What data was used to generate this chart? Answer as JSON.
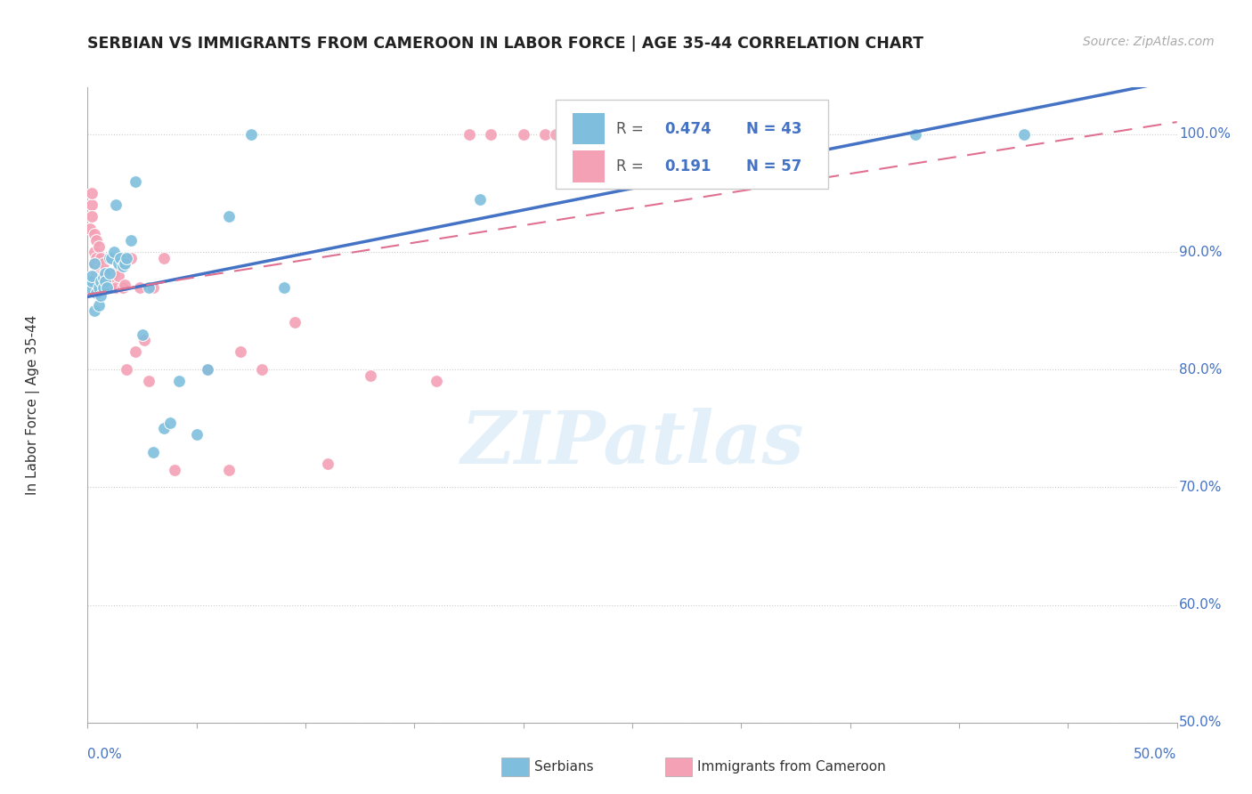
{
  "title": "SERBIAN VS IMMIGRANTS FROM CAMEROON IN LABOR FORCE | AGE 35-44 CORRELATION CHART",
  "source": "Source: ZipAtlas.com",
  "ylabel": "In Labor Force | Age 35-44",
  "xlim": [
    0.0,
    0.5
  ],
  "ylim": [
    0.5,
    1.04
  ],
  "ytick_values": [
    0.5,
    0.6,
    0.7,
    0.8,
    0.9,
    1.0
  ],
  "ytick_labels": [
    "50.0%",
    "60.0%",
    "70.0%",
    "80.0%",
    "90.0%",
    "100.0%"
  ],
  "xtick_label_left": "0.0%",
  "xtick_label_right": "50.0%",
  "legend_r1": "R = 0.474",
  "legend_n1": "N = 43",
  "legend_r2": "R =  0.191",
  "legend_n2": "N = 57",
  "serbian_color": "#7fbfdd",
  "cameroon_color": "#f4a0b5",
  "trend_serbian_color": "#4472c4",
  "trend_cameroon_color": "#e07090",
  "watermark_text": "ZIPatlas",
  "serbian_x": [
    0.001,
    0.002,
    0.002,
    0.003,
    0.003,
    0.004,
    0.005,
    0.005,
    0.006,
    0.006,
    0.007,
    0.007,
    0.008,
    0.008,
    0.009,
    0.01,
    0.01,
    0.011,
    0.012,
    0.013,
    0.014,
    0.015,
    0.016,
    0.017,
    0.018,
    0.02,
    0.022,
    0.025,
    0.028,
    0.03,
    0.035,
    0.038,
    0.042,
    0.05,
    0.055,
    0.065,
    0.075,
    0.09,
    0.18,
    0.25,
    0.3,
    0.38,
    0.43
  ],
  "serbian_y": [
    0.87,
    0.875,
    0.88,
    0.85,
    0.89,
    0.865,
    0.855,
    0.87,
    0.863,
    0.875,
    0.87,
    0.878,
    0.882,
    0.875,
    0.87,
    0.895,
    0.882,
    0.895,
    0.9,
    0.94,
    0.89,
    0.895,
    0.888,
    0.89,
    0.895,
    0.91,
    0.96,
    0.83,
    0.87,
    0.73,
    0.75,
    0.755,
    0.79,
    0.745,
    0.8,
    0.93,
    1.0,
    0.87,
    0.945,
    1.0,
    1.0,
    1.0,
    1.0
  ],
  "cameroon_x": [
    0.001,
    0.002,
    0.002,
    0.002,
    0.003,
    0.003,
    0.003,
    0.004,
    0.004,
    0.004,
    0.005,
    0.005,
    0.005,
    0.006,
    0.006,
    0.006,
    0.007,
    0.007,
    0.007,
    0.008,
    0.008,
    0.009,
    0.009,
    0.01,
    0.01,
    0.01,
    0.011,
    0.011,
    0.012,
    0.013,
    0.014,
    0.015,
    0.016,
    0.017,
    0.018,
    0.02,
    0.022,
    0.024,
    0.026,
    0.028,
    0.03,
    0.035,
    0.04,
    0.055,
    0.065,
    0.07,
    0.08,
    0.095,
    0.11,
    0.13,
    0.16,
    0.175,
    0.185,
    0.2,
    0.21,
    0.215,
    0.225
  ],
  "cameroon_y": [
    0.92,
    0.94,
    0.95,
    0.93,
    0.89,
    0.9,
    0.915,
    0.88,
    0.895,
    0.91,
    0.875,
    0.885,
    0.905,
    0.87,
    0.88,
    0.895,
    0.875,
    0.88,
    0.89,
    0.875,
    0.88,
    0.87,
    0.882,
    0.872,
    0.875,
    0.87,
    0.87,
    0.878,
    0.882,
    0.87,
    0.88,
    0.895,
    0.87,
    0.872,
    0.8,
    0.895,
    0.815,
    0.87,
    0.825,
    0.79,
    0.87,
    0.895,
    0.715,
    0.8,
    0.715,
    0.815,
    0.8,
    0.84,
    0.72,
    0.795,
    0.79,
    1.0,
    1.0,
    1.0,
    1.0,
    1.0,
    1.0
  ]
}
